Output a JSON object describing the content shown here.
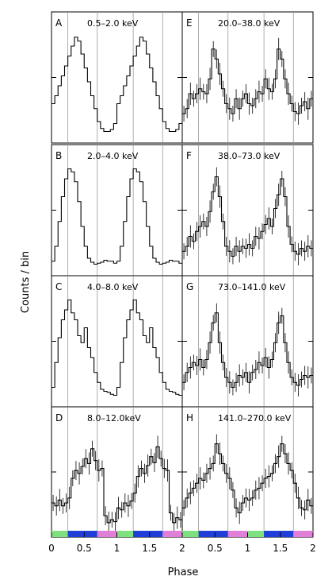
{
  "chart_data": {
    "type": "line",
    "ylabel": "Counts / bin",
    "xlabel": "Phase",
    "xlim": [
      0,
      2
    ],
    "x_ticks": [
      "0",
      "0.5",
      "1",
      "1.5",
      "2",
      "0",
      "0.5",
      "1",
      "1.5",
      "2"
    ],
    "gridlines_x": [
      0.25,
      0.7,
      1.25,
      1.7
    ],
    "phase_bar": {
      "segments": [
        {
          "from": 0.0,
          "to": 0.25,
          "color": "#7ee07e"
        },
        {
          "from": 0.25,
          "to": 0.6,
          "color": "#1f3fd8"
        },
        {
          "from": 0.6,
          "to": 0.7,
          "color": "#1f3fd8"
        },
        {
          "from": 0.7,
          "to": 1.0,
          "color": "#e07ed8"
        },
        {
          "from": 1.0,
          "to": 1.25,
          "color": "#7ee07e"
        },
        {
          "from": 1.25,
          "to": 1.7,
          "color": "#1f3fd8"
        },
        {
          "from": 1.7,
          "to": 2.0,
          "color": "#e07ed8"
        }
      ]
    },
    "panels": [
      {
        "letter": "A",
        "energy": "0.5–2.0 keV",
        "col": 0,
        "row": 0,
        "errors": false,
        "values": [
          0.3,
          0.38,
          0.48,
          0.58,
          0.68,
          0.78,
          0.88,
          0.97,
          0.93,
          0.8,
          0.66,
          0.52,
          0.38,
          0.25,
          0.12,
          0.05,
          0.02,
          0.02,
          0.04,
          0.1,
          0.3,
          0.38,
          0.48,
          0.58,
          0.68,
          0.78,
          0.88,
          0.97,
          0.93,
          0.8,
          0.66,
          0.52,
          0.38,
          0.25,
          0.12,
          0.05,
          0.02,
          0.02,
          0.04,
          0.1
        ]
      },
      {
        "letter": "B",
        "energy": "2.0–4.0 keV",
        "col": 0,
        "row": 1,
        "errors": false,
        "values": [
          0.05,
          0.2,
          0.45,
          0.7,
          0.88,
          0.98,
          0.95,
          0.85,
          0.65,
          0.4,
          0.2,
          0.08,
          0.04,
          0.02,
          0.03,
          0.04,
          0.06,
          0.05,
          0.05,
          0.03,
          0.05,
          0.2,
          0.45,
          0.7,
          0.88,
          0.98,
          0.95,
          0.85,
          0.65,
          0.4,
          0.2,
          0.08,
          0.04,
          0.02,
          0.03,
          0.04,
          0.06,
          0.05,
          0.05,
          0.03
        ]
      },
      {
        "letter": "C",
        "energy": "4.0–8.0 keV",
        "col": 0,
        "row": 2,
        "errors": false,
        "values": [
          0.1,
          0.35,
          0.6,
          0.78,
          0.88,
          0.98,
          0.85,
          0.78,
          0.62,
          0.55,
          0.7,
          0.5,
          0.4,
          0.25,
          0.15,
          0.08,
          0.06,
          0.05,
          0.03,
          0.02,
          0.1,
          0.35,
          0.6,
          0.78,
          0.88,
          0.98,
          0.85,
          0.78,
          0.62,
          0.55,
          0.7,
          0.5,
          0.4,
          0.25,
          0.15,
          0.08,
          0.06,
          0.05,
          0.03,
          0.02
        ]
      },
      {
        "letter": "D",
        "energy": "8.0–12.0keV",
        "col": 0,
        "row": 3,
        "errors": true,
        "values": [
          0.25,
          0.22,
          0.28,
          0.22,
          0.25,
          0.3,
          0.5,
          0.58,
          0.55,
          0.62,
          0.7,
          0.65,
          0.8,
          0.68,
          0.58,
          0.6,
          0.12,
          0.05,
          0.08,
          0.06,
          0.2,
          0.18,
          0.25,
          0.22,
          0.27,
          0.35,
          0.52,
          0.6,
          0.55,
          0.63,
          0.72,
          0.66,
          0.82,
          0.7,
          0.6,
          0.58,
          0.15,
          0.05,
          0.1,
          0.08
        ]
      },
      {
        "letter": "E",
        "energy": "20.0–38.0 keV",
        "col": 1,
        "row": 0,
        "errors": true,
        "values": [
          0.2,
          0.25,
          0.4,
          0.35,
          0.4,
          0.45,
          0.42,
          0.4,
          0.55,
          0.85,
          0.75,
          0.6,
          0.45,
          0.3,
          0.25,
          0.2,
          0.35,
          0.25,
          0.35,
          0.4,
          0.3,
          0.28,
          0.35,
          0.42,
          0.4,
          0.55,
          0.45,
          0.42,
          0.55,
          0.85,
          0.75,
          0.55,
          0.4,
          0.3,
          0.22,
          0.2,
          0.28,
          0.32,
          0.25,
          0.35
        ]
      },
      {
        "letter": "F",
        "energy": "38.0–73.0 keV",
        "col": 1,
        "row": 1,
        "errors": true,
        "values": [
          0.15,
          0.2,
          0.3,
          0.25,
          0.35,
          0.4,
          0.45,
          0.4,
          0.55,
          0.75,
          0.9,
          0.7,
          0.45,
          0.2,
          0.15,
          0.1,
          0.2,
          0.15,
          0.2,
          0.18,
          0.22,
          0.18,
          0.3,
          0.28,
          0.35,
          0.42,
          0.48,
          0.4,
          0.58,
          0.72,
          0.88,
          0.7,
          0.4,
          0.22,
          0.15,
          0.12,
          0.18,
          0.15,
          0.2,
          0.18
        ]
      },
      {
        "letter": "G",
        "energy": "73.0–141.0 keV",
        "col": 1,
        "row": 2,
        "errors": true,
        "values": [
          0.15,
          0.25,
          0.3,
          0.35,
          0.32,
          0.38,
          0.3,
          0.38,
          0.55,
          0.75,
          0.85,
          0.55,
          0.35,
          0.2,
          0.15,
          0.1,
          0.15,
          0.22,
          0.2,
          0.25,
          0.15,
          0.25,
          0.28,
          0.35,
          0.32,
          0.4,
          0.3,
          0.38,
          0.55,
          0.75,
          0.82,
          0.55,
          0.35,
          0.2,
          0.15,
          0.12,
          0.18,
          0.22,
          0.2,
          0.22
        ]
      },
      {
        "letter": "H",
        "energy": "141.0–270.0 keV",
        "col": 1,
        "row": 3,
        "errors": true,
        "values": [
          0.2,
          0.3,
          0.35,
          0.4,
          0.45,
          0.5,
          0.48,
          0.55,
          0.6,
          0.65,
          0.85,
          0.75,
          0.65,
          0.55,
          0.5,
          0.38,
          0.2,
          0.15,
          0.25,
          0.3,
          0.28,
          0.3,
          0.38,
          0.4,
          0.45,
          0.5,
          0.52,
          0.55,
          0.65,
          0.72,
          0.85,
          0.75,
          0.65,
          0.58,
          0.45,
          0.3,
          0.2,
          0.18,
          0.28,
          0.22
        ]
      }
    ]
  }
}
